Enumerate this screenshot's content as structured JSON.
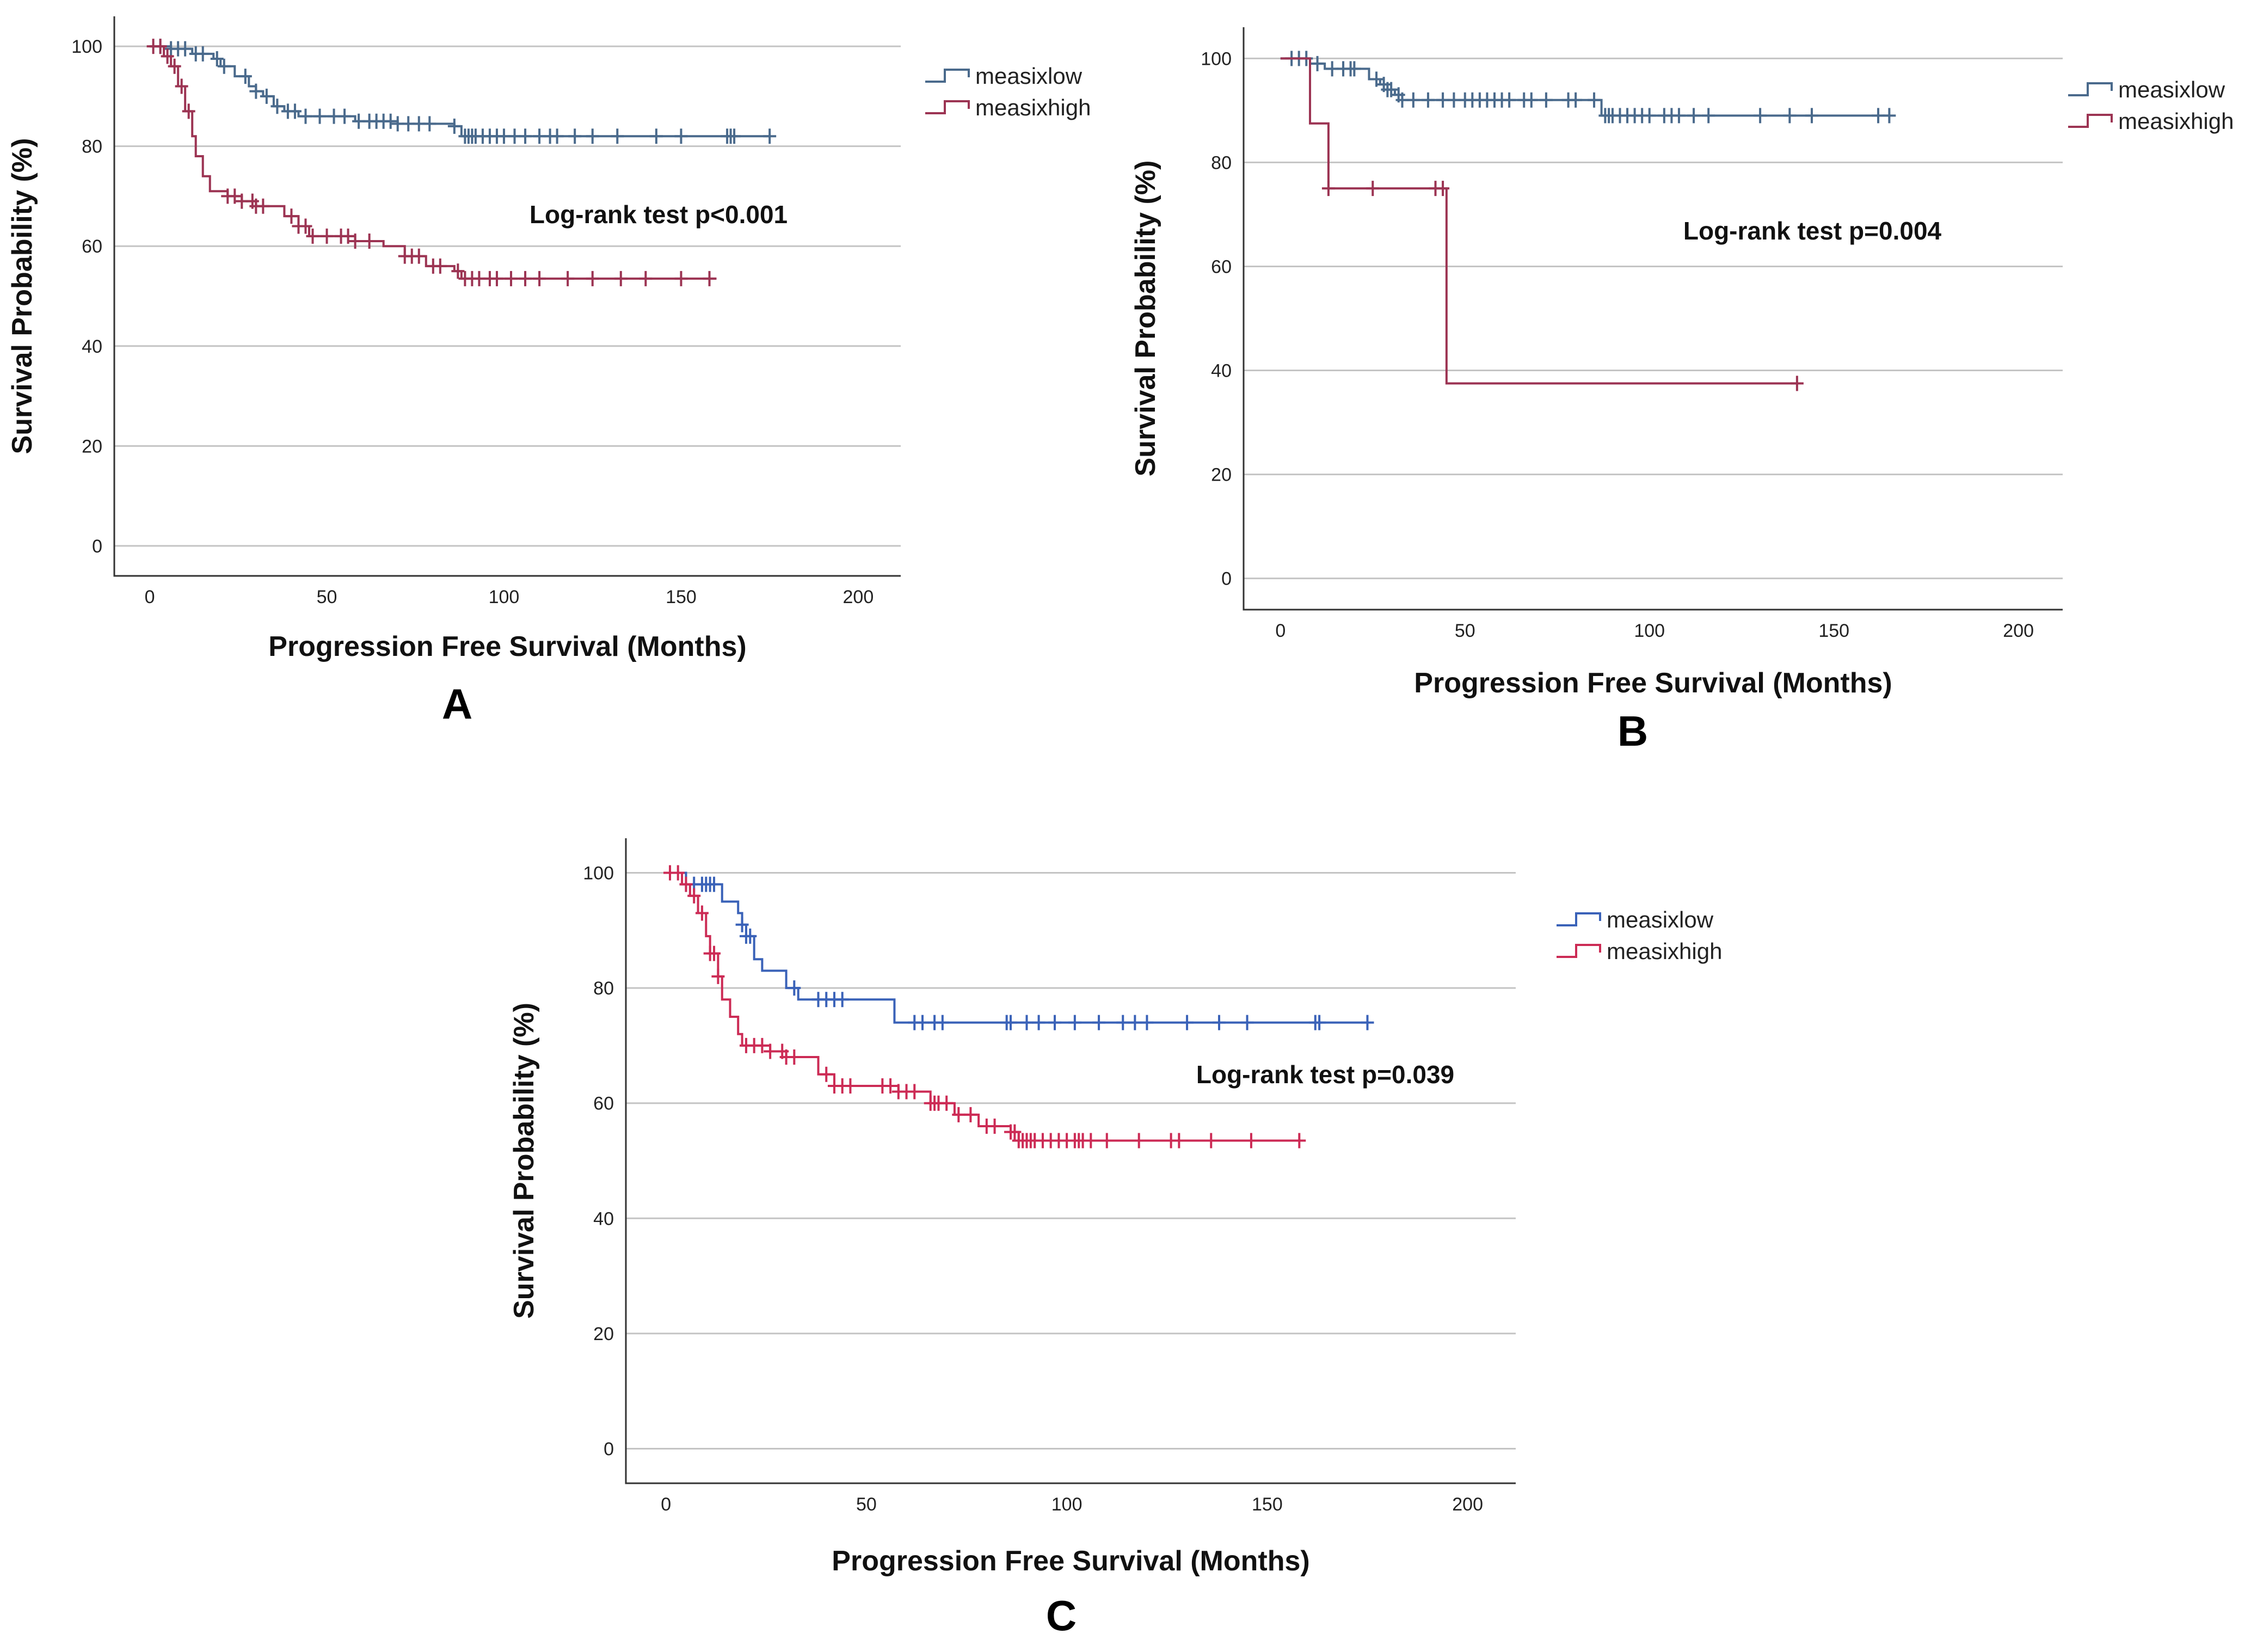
{
  "chart_data": [
    {
      "type": "line",
      "panel_label": "A",
      "xlabel": "Progression Free Survival (Months)",
      "ylabel": "Survival Probability (%)",
      "xticks": [
        "0",
        "50",
        "100",
        "150",
        "200"
      ],
      "yticks": [
        "0",
        "20",
        "40",
        "60",
        "80",
        "100"
      ],
      "xlim": [
        -10,
        212
      ],
      "ylim": [
        -6,
        106
      ],
      "grid": true,
      "annotation": "Log-rank test p<0.001",
      "legend_position": "top-right",
      "series": [
        {
          "name": "measixlow",
          "color": "#4a6a8c",
          "steps": [
            [
              0,
              100
            ],
            [
              6,
              99.5
            ],
            [
              12,
              98.5
            ],
            [
              18,
              97.5
            ],
            [
              20,
              96
            ],
            [
              24,
              94
            ],
            [
              28,
              92
            ],
            [
              30,
              91
            ],
            [
              32,
              90
            ],
            [
              35,
              88
            ],
            [
              38,
              87
            ],
            [
              42,
              86
            ],
            [
              55,
              86
            ],
            [
              58,
              85
            ],
            [
              70,
              84.5
            ],
            [
              86,
              84
            ],
            [
              88,
              82
            ],
            [
              175,
              82
            ]
          ],
          "censors": [
            3,
            6,
            8,
            10,
            13,
            15,
            19,
            21,
            27,
            30,
            33,
            36,
            39,
            41,
            44,
            48,
            52,
            55,
            59,
            62,
            64,
            66,
            68,
            70,
            73,
            76,
            79,
            86,
            89,
            90,
            91,
            92,
            94,
            96,
            98,
            100,
            103,
            106,
            110,
            113,
            115,
            120,
            125,
            132,
            143,
            150,
            163,
            164,
            165,
            175
          ]
        },
        {
          "name": "measixhigh",
          "color": "#9c3453",
          "steps": [
            [
              0,
              100
            ],
            [
              4,
              98
            ],
            [
              6,
              96
            ],
            [
              8,
              92
            ],
            [
              10,
              87
            ],
            [
              12,
              82
            ],
            [
              13,
              78
            ],
            [
              15,
              74
            ],
            [
              17,
              71
            ],
            [
              22,
              70
            ],
            [
              26,
              69
            ],
            [
              30,
              68
            ],
            [
              38,
              66
            ],
            [
              42,
              64
            ],
            [
              45,
              62
            ],
            [
              58,
              61
            ],
            [
              66,
              60
            ],
            [
              72,
              58
            ],
            [
              78,
              56
            ],
            [
              86,
              55
            ],
            [
              88,
              53.5
            ],
            [
              160,
              53.5
            ]
          ],
          "censors": [
            1,
            3,
            5,
            7,
            9,
            11,
            22,
            24,
            26,
            29,
            30,
            32,
            40,
            42,
            44,
            46,
            50,
            54,
            56,
            58,
            62,
            72,
            74,
            76,
            80,
            82,
            87,
            89,
            91,
            93,
            96,
            98,
            102,
            106,
            110,
            118,
            125,
            133,
            140,
            150,
            158
          ]
        }
      ]
    },
    {
      "type": "line",
      "panel_label": "B",
      "xlabel": "Progression Free Survival (Months)",
      "ylabel": "Survival Probability (%)",
      "xticks": [
        "0",
        "50",
        "100",
        "150",
        "200"
      ],
      "yticks": [
        "0",
        "20",
        "40",
        "60",
        "80",
        "100"
      ],
      "xlim": [
        -10,
        212
      ],
      "ylim": [
        -6,
        106
      ],
      "grid": true,
      "annotation": "Log-rank test p=0.004",
      "legend_position": "top-right",
      "series": [
        {
          "name": "measixlow",
          "color": "#4a6a8c",
          "steps": [
            [
              0,
              100
            ],
            [
              8,
              99
            ],
            [
              12,
              98
            ],
            [
              24,
              96
            ],
            [
              27,
              95
            ],
            [
              29,
              94
            ],
            [
              31,
              93
            ],
            [
              33,
              92
            ],
            [
              86,
              92
            ],
            [
              87,
              89
            ],
            [
              165,
              89
            ]
          ],
          "censors": [
            3,
            5,
            7,
            10,
            14,
            17,
            19,
            20,
            26,
            28,
            29,
            30,
            32,
            33,
            36,
            40,
            44,
            47,
            50,
            52,
            54,
            56,
            58,
            60,
            62,
            66,
            68,
            72,
            78,
            80,
            85,
            88,
            89,
            90,
            92,
            94,
            96,
            98,
            100,
            104,
            106,
            108,
            112,
            116,
            130,
            138,
            144,
            162,
            165
          ]
        },
        {
          "name": "measixhigh",
          "color": "#9c3453",
          "steps": [
            [
              0,
              100
            ],
            [
              8,
              87.5
            ],
            [
              13,
              75
            ],
            [
              44,
              75
            ],
            [
              45,
              37.5
            ],
            [
              140,
              37.5
            ]
          ],
          "censors": [
            13,
            25,
            42,
            44,
            140
          ]
        }
      ]
    },
    {
      "type": "line",
      "panel_label": "C",
      "xlabel": "Progression Free Survival (Months)",
      "ylabel": "Survival Probability (%)",
      "xticks": [
        "0",
        "50",
        "100",
        "150",
        "200"
      ],
      "yticks": [
        "0",
        "20",
        "40",
        "60",
        "80",
        "100"
      ],
      "xlim": [
        -10,
        212
      ],
      "ylim": [
        -6,
        106
      ],
      "grid": true,
      "annotation": "Log-rank test p=0.039",
      "legend_position": "top-right",
      "series": [
        {
          "name": "measixlow",
          "color": "#3a62b8",
          "steps": [
            [
              0,
              100
            ],
            [
              5,
              98
            ],
            [
              12,
              98
            ],
            [
              14,
              95
            ],
            [
              18,
              93
            ],
            [
              19,
              91
            ],
            [
              20,
              89
            ],
            [
              22,
              85
            ],
            [
              24,
              83
            ],
            [
              30,
              80
            ],
            [
              33,
              78
            ],
            [
              55,
              78
            ],
            [
              57,
              74
            ],
            [
              175,
              74
            ]
          ],
          "censors": [
            5,
            7,
            9,
            10,
            11,
            12,
            19,
            20,
            21,
            32,
            38,
            40,
            42,
            44,
            62,
            64,
            67,
            69,
            85,
            86,
            90,
            93,
            97,
            102,
            108,
            114,
            117,
            120,
            130,
            138,
            145,
            162,
            163,
            175
          ]
        },
        {
          "name": "measixhigh",
          "color": "#cc2b55",
          "steps": [
            [
              0,
              100
            ],
            [
              4,
              98
            ],
            [
              6,
              96
            ],
            [
              8,
              93
            ],
            [
              10,
              89
            ],
            [
              11,
              86
            ],
            [
              13,
              82
            ],
            [
              14,
              78
            ],
            [
              16,
              75
            ],
            [
              18,
              72
            ],
            [
              19,
              70
            ],
            [
              26,
              69
            ],
            [
              30,
              68
            ],
            [
              38,
              65
            ],
            [
              42,
              63
            ],
            [
              58,
              62
            ],
            [
              66,
              60
            ],
            [
              72,
              58
            ],
            [
              78,
              56
            ],
            [
              86,
              55
            ],
            [
              88,
              53.5
            ],
            [
              158,
              53.5
            ]
          ],
          "censors": [
            1,
            3,
            5,
            7,
            9,
            11,
            12,
            13,
            20,
            22,
            24,
            26,
            29,
            30,
            32,
            40,
            42,
            44,
            46,
            54,
            56,
            58,
            60,
            62,
            66,
            67,
            68,
            70,
            73,
            76,
            80,
            82,
            86,
            87,
            88,
            89,
            90,
            91,
            92,
            94,
            96,
            98,
            100,
            102,
            103,
            104,
            106,
            110,
            118,
            126,
            128,
            136,
            146,
            158
          ]
        }
      ]
    }
  ]
}
